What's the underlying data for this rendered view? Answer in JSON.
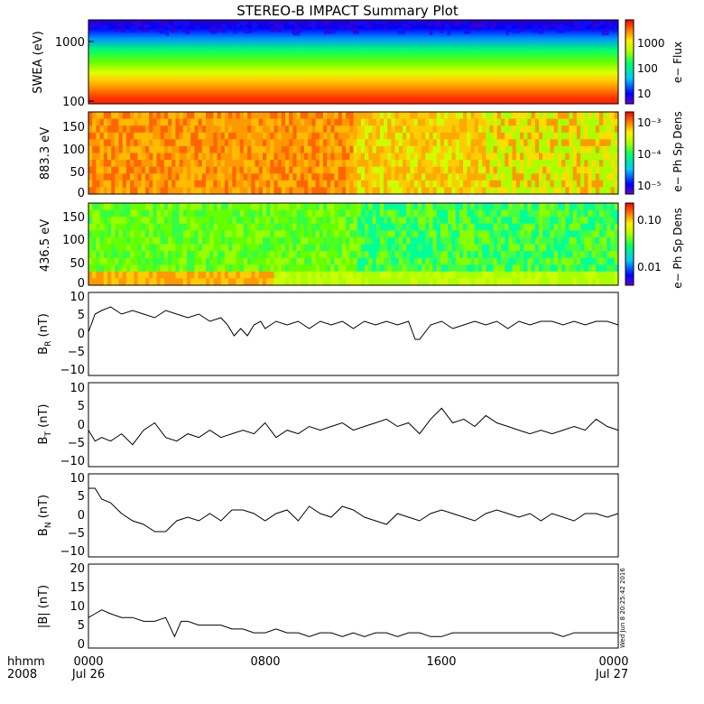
{
  "title": "STEREO-B IMPACT Summary Plot",
  "time_axis": {
    "row1_label": "hhmm",
    "row2_label": "2008",
    "ticks": [
      {
        "time": "0000",
        "date": "Jul 26",
        "hour": 0
      },
      {
        "time": "0800",
        "date": "",
        "hour": 8
      },
      {
        "time": "1600",
        "date": "",
        "hour": 16
      },
      {
        "time": "0000",
        "date": "Jul 27",
        "hour": 24
      }
    ],
    "range_hours": [
      0,
      24
    ]
  },
  "timestamp": "Wed Jun  8 20:25:42 2016",
  "panels": {
    "swea": {
      "ylabel": "SWEA (eV)",
      "yticks": [
        "1000",
        "100"
      ],
      "colorbar_label": "e− Flux",
      "colorbar_ticks": [
        "1000",
        "100",
        "10"
      ]
    },
    "pad883": {
      "ylabel": "883.3 eV",
      "yticks": [
        "150",
        "100",
        "50",
        "0"
      ],
      "colorbar_label": "e− Ph Sp Dens",
      "colorbar_ticks": [
        "10⁻³",
        "10⁻⁴",
        "10⁻⁵"
      ]
    },
    "pad436": {
      "ylabel": "436.5 eV",
      "yticks": [
        "150",
        "100",
        "50",
        "0"
      ],
      "colorbar_label": "e− Ph Sp Dens",
      "colorbar_ticks": [
        "0.10",
        "0.01"
      ]
    },
    "br": {
      "ylabel": "B",
      "ysub": "R",
      "yunit": " (nT)",
      "yticks": [
        "10",
        "5",
        "0",
        "−5",
        "−10"
      ]
    },
    "bt": {
      "ylabel": "B",
      "ysub": "T",
      "yunit": " (nT)",
      "yticks": [
        "10",
        "5",
        "0",
        "−5",
        "−10"
      ]
    },
    "bn": {
      "ylabel": "B",
      "ysub": "N",
      "yunit": " (nT)",
      "yticks": [
        "10",
        "5",
        "0",
        "−5",
        "−10"
      ]
    },
    "bmag": {
      "ylabel": "|B| (nT)",
      "yticks": [
        "20",
        "15",
        "10",
        "5",
        "0"
      ]
    }
  },
  "chart_data": [
    {
      "type": "heatmap",
      "name": "swea",
      "ylabel": "SWEA (eV)",
      "yscale": "log",
      "ylim": [
        90,
        2000
      ],
      "zlabel": "e− Flux",
      "zscale": "log",
      "zlim": [
        3,
        10000
      ],
      "profile_energy_eV": [
        100,
        150,
        250,
        400,
        700,
        1000,
        1500,
        2000
      ],
      "profile_flux": [
        5000,
        3500,
        2200,
        800,
        200,
        60,
        10,
        4
      ]
    },
    {
      "type": "heatmap",
      "name": "pitch-angle-883",
      "ylabel": "883.3 eV",
      "ylim": [
        0,
        180
      ],
      "zlabel": "e− Ph Sp Dens",
      "zscale": "log",
      "zlim": [
        3e-06,
        0.002
      ],
      "description_level_by_hour": [
        0.0008,
        0.0007,
        0.0009,
        0.0008,
        0.0007,
        0.0008,
        0.0007,
        0.0006,
        0.0006,
        0.0006,
        0.0005,
        0.0005,
        0.0005,
        0.0004,
        0.0004,
        0.0004,
        0.0003,
        0.0003,
        0.0002,
        0.0002,
        0.0002,
        0.0002,
        0.0002,
        0.0002
      ]
    },
    {
      "type": "heatmap",
      "name": "pitch-angle-436",
      "ylabel": "436.5 eV",
      "ylim": [
        0,
        180
      ],
      "zlabel": "e− Ph Sp Dens",
      "zscale": "log",
      "zlim": [
        0.003,
        0.2
      ],
      "description_level_by_hour": [
        0.06,
        0.06,
        0.05,
        0.05,
        0.05,
        0.05,
        0.05,
        0.05,
        0.05,
        0.04,
        0.04,
        0.04,
        0.04,
        0.04,
        0.04,
        0.04,
        0.04,
        0.03,
        0.04,
        0.04,
        0.03,
        0.03,
        0.04,
        0.04
      ]
    },
    {
      "type": "line",
      "name": "BR",
      "ylabel": "BR (nT)",
      "ylim": [
        -12,
        11
      ],
      "x_hours": [
        0,
        0.3,
        0.6,
        1,
        1.5,
        2,
        2.5,
        3,
        3.5,
        4,
        4.5,
        5,
        5.5,
        6,
        6.3,
        6.6,
        6.9,
        7.2,
        7.5,
        7.8,
        8,
        8.5,
        9,
        9.5,
        10,
        10.5,
        11,
        11.5,
        12,
        12.5,
        13,
        13.5,
        14,
        14.5,
        14.8,
        15,
        15.5,
        16,
        16.5,
        17,
        17.5,
        18,
        18.5,
        19,
        19.5,
        20,
        20.5,
        21,
        21.5,
        22,
        22.5,
        23,
        23.5,
        24
      ],
      "y_nT": [
        0,
        5,
        6,
        7,
        5,
        6,
        5,
        4,
        6,
        5,
        4,
        5,
        3,
        4,
        2,
        -1,
        1,
        -1,
        2,
        3,
        1,
        3,
        2,
        3,
        1,
        3,
        2,
        3,
        1,
        3,
        2,
        3,
        2,
        3,
        -2,
        -2,
        2,
        3,
        1,
        2,
        3,
        2,
        3,
        1,
        3,
        2,
        3,
        3,
        2,
        3,
        2,
        3,
        3,
        2
      ]
    },
    {
      "type": "line",
      "name": "BT",
      "ylabel": "BT (nT)",
      "ylim": [
        -12,
        11
      ],
      "x_hours": [
        0,
        0.3,
        0.6,
        1,
        1.5,
        2,
        2.5,
        3,
        3.5,
        4,
        4.5,
        5,
        5.5,
        6,
        6.5,
        7,
        7.5,
        8,
        8.5,
        9,
        9.5,
        10,
        10.5,
        11,
        11.5,
        12,
        12.5,
        13,
        13.5,
        14,
        14.5,
        15,
        15.5,
        16,
        16.5,
        17,
        17.5,
        18,
        18.5,
        19,
        19.5,
        20,
        20.5,
        21,
        21.5,
        22,
        22.5,
        23,
        23.5,
        24
      ],
      "y_nT": [
        -2,
        -5,
        -4,
        -5,
        -3,
        -6,
        -2,
        0,
        -4,
        -5,
        -3,
        -4,
        -2,
        -4,
        -3,
        -2,
        -3,
        0,
        -4,
        -2,
        -3,
        -1,
        -2,
        -1,
        0,
        -2,
        -1,
        0,
        1,
        -1,
        0,
        -3,
        1,
        4,
        0,
        1,
        -1,
        2,
        0,
        -1,
        -2,
        -3,
        -2,
        -3,
        -2,
        -1,
        -2,
        1,
        -1,
        -2
      ]
    },
    {
      "type": "line",
      "name": "BN",
      "ylabel": "BN (nT)",
      "ylim": [
        -12,
        11
      ],
      "x_hours": [
        0,
        0.3,
        0.6,
        1,
        1.5,
        2,
        2.5,
        3,
        3.5,
        4,
        4.5,
        5,
        5.5,
        6,
        6.5,
        7,
        7.5,
        8,
        8.5,
        9,
        9.5,
        10,
        10.5,
        11,
        11.5,
        12,
        12.5,
        13,
        13.5,
        14,
        14.5,
        15,
        15.5,
        16,
        16.5,
        17,
        17.5,
        18,
        18.5,
        19,
        19.5,
        20,
        20.5,
        21,
        21.5,
        22,
        22.5,
        23,
        23.5,
        24
      ],
      "y_nT": [
        7,
        7,
        4,
        3,
        0,
        -2,
        -3,
        -5,
        -5,
        -2,
        -1,
        -2,
        0,
        -2,
        1,
        1,
        0,
        -2,
        0,
        1,
        -2,
        2,
        0,
        -1,
        2,
        1,
        -1,
        -2,
        -3,
        0,
        -1,
        -2,
        0,
        1,
        0,
        -1,
        -2,
        0,
        1,
        0,
        -1,
        0,
        -2,
        0,
        -1,
        -2,
        0,
        0,
        -1,
        0
      ]
    },
    {
      "type": "line",
      "name": "Bmag",
      "ylabel": "|B| (nT)",
      "ylim": [
        -1,
        21
      ],
      "x_hours": [
        0,
        0.3,
        0.6,
        1,
        1.5,
        2,
        2.5,
        3,
        3.5,
        3.9,
        4.2,
        4.5,
        5,
        5.5,
        6,
        6.5,
        7,
        7.5,
        8,
        8.5,
        9,
        9.5,
        10,
        10.5,
        11,
        11.5,
        12,
        12.5,
        13,
        13.5,
        14,
        14.5,
        15,
        15.5,
        16,
        16.5,
        17,
        17.5,
        18,
        18.5,
        19,
        19.5,
        20,
        20.5,
        21,
        21.5,
        22,
        22.5,
        23,
        23.5,
        24
      ],
      "y_nT": [
        7,
        8,
        9,
        8,
        7,
        7,
        6,
        6,
        7,
        2,
        6,
        6,
        5,
        5,
        5,
        4,
        4,
        3,
        3,
        4,
        3,
        3,
        2,
        3,
        3,
        2,
        3,
        2,
        3,
        3,
        2,
        3,
        3,
        2,
        2,
        3,
        3,
        3,
        3,
        3,
        3,
        3,
        3,
        3,
        3,
        2,
        3,
        3,
        3,
        3,
        3
      ]
    }
  ]
}
